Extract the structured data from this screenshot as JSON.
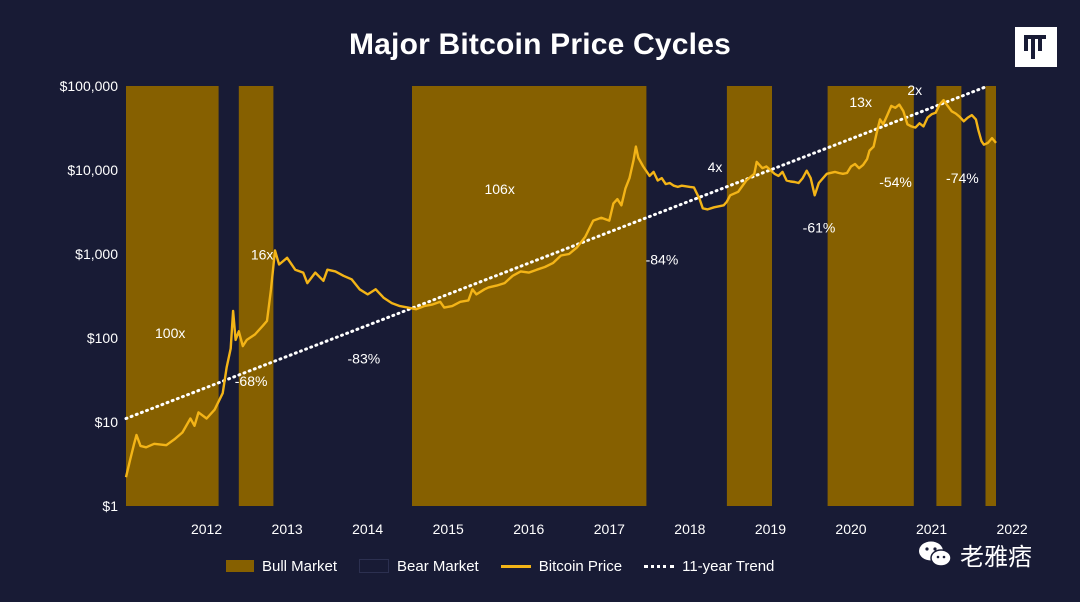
{
  "colors": {
    "background": "#181b35",
    "bull": "#866000",
    "price": "#f3b417",
    "trend": "#ffffff",
    "text": "#ffffff"
  },
  "logo_icon": "pantera-logo-icon",
  "watermark": {
    "icon": "wechat-icon",
    "text": "老雅痞"
  },
  "chart_data": {
    "type": "line",
    "title": "Major Bitcoin Price Cycles",
    "yscale": "log",
    "ylim": [
      1,
      100000
    ],
    "xlim": [
      2011.5,
      2022.3
    ],
    "y_ticks": [
      {
        "value": 100000,
        "label": "$100,000"
      },
      {
        "value": 10000,
        "label": "$10,000"
      },
      {
        "value": 1000,
        "label": "$1,000"
      },
      {
        "value": 100,
        "label": "$100"
      },
      {
        "value": 10,
        "label": "$10"
      },
      {
        "value": 1,
        "label": "$1"
      }
    ],
    "x_ticks": [
      {
        "value": 2012,
        "label": "2012"
      },
      {
        "value": 2013,
        "label": "2013"
      },
      {
        "value": 2014,
        "label": "2014"
      },
      {
        "value": 2015,
        "label": "2015"
      },
      {
        "value": 2016,
        "label": "2016"
      },
      {
        "value": 2017,
        "label": "2017"
      },
      {
        "value": 2018,
        "label": "2018"
      },
      {
        "value": 2019,
        "label": "2019"
      },
      {
        "value": 2020,
        "label": "2020"
      },
      {
        "value": 2021,
        "label": "2021"
      },
      {
        "value": 2022,
        "label": "2022"
      }
    ],
    "bull_periods": [
      [
        2011.5,
        2012.65
      ],
      [
        2012.9,
        2013.33
      ],
      [
        2015.05,
        2017.96
      ],
      [
        2018.96,
        2019.52
      ],
      [
        2020.21,
        2021.28
      ],
      [
        2021.56,
        2021.87
      ],
      [
        2022.17,
        2022.3
      ]
    ],
    "series": [
      {
        "name": "Bitcoin Price",
        "points": [
          [
            2011.5,
            2.2
          ],
          [
            2011.55,
            3.5
          ],
          [
            2011.6,
            5.5
          ],
          [
            2011.63,
            7.0
          ],
          [
            2011.68,
            5.2
          ],
          [
            2011.75,
            5.0
          ],
          [
            2011.85,
            5.5
          ],
          [
            2012.0,
            5.3
          ],
          [
            2012.1,
            6.2
          ],
          [
            2012.2,
            7.5
          ],
          [
            2012.3,
            11
          ],
          [
            2012.35,
            9
          ],
          [
            2012.4,
            13
          ],
          [
            2012.5,
            11
          ],
          [
            2012.6,
            14
          ],
          [
            2012.7,
            22
          ],
          [
            2012.75,
            45
          ],
          [
            2012.8,
            75
          ],
          [
            2012.83,
            210
          ],
          [
            2012.86,
            95
          ],
          [
            2012.9,
            120
          ],
          [
            2012.95,
            80
          ],
          [
            2013.0,
            95
          ],
          [
            2013.1,
            110
          ],
          [
            2013.2,
            140
          ],
          [
            2013.25,
            160
          ],
          [
            2013.3,
            380
          ],
          [
            2013.35,
            1100
          ],
          [
            2013.4,
            750
          ],
          [
            2013.5,
            900
          ],
          [
            2013.6,
            650
          ],
          [
            2013.7,
            600
          ],
          [
            2013.75,
            450
          ],
          [
            2013.85,
            600
          ],
          [
            2013.95,
            480
          ],
          [
            2014.0,
            650
          ],
          [
            2014.1,
            620
          ],
          [
            2014.2,
            550
          ],
          [
            2014.3,
            500
          ],
          [
            2014.4,
            380
          ],
          [
            2014.5,
            330
          ],
          [
            2014.6,
            380
          ],
          [
            2014.7,
            300
          ],
          [
            2014.8,
            260
          ],
          [
            2014.9,
            240
          ],
          [
            2015.0,
            230
          ],
          [
            2015.1,
            220
          ],
          [
            2015.2,
            240
          ],
          [
            2015.3,
            250
          ],
          [
            2015.4,
            270
          ],
          [
            2015.45,
            230
          ],
          [
            2015.55,
            240
          ],
          [
            2015.65,
            270
          ],
          [
            2015.75,
            280
          ],
          [
            2015.8,
            380
          ],
          [
            2015.85,
            330
          ],
          [
            2015.95,
            380
          ],
          [
            2016.0,
            400
          ],
          [
            2016.1,
            420
          ],
          [
            2016.2,
            450
          ],
          [
            2016.3,
            550
          ],
          [
            2016.4,
            620
          ],
          [
            2016.5,
            600
          ],
          [
            2016.6,
            650
          ],
          [
            2016.7,
            700
          ],
          [
            2016.8,
            780
          ],
          [
            2016.9,
            960
          ],
          [
            2017.0,
            1000
          ],
          [
            2017.1,
            1200
          ],
          [
            2017.2,
            1600
          ],
          [
            2017.3,
            2500
          ],
          [
            2017.4,
            2700
          ],
          [
            2017.5,
            2500
          ],
          [
            2017.55,
            4000
          ],
          [
            2017.6,
            4500
          ],
          [
            2017.65,
            3800
          ],
          [
            2017.7,
            6000
          ],
          [
            2017.75,
            8000
          ],
          [
            2017.8,
            13000
          ],
          [
            2017.83,
            19000
          ],
          [
            2017.86,
            14000
          ],
          [
            2017.92,
            11000
          ],
          [
            2017.95,
            10000
          ],
          [
            2018.0,
            8500
          ],
          [
            2018.05,
            9500
          ],
          [
            2018.1,
            7500
          ],
          [
            2018.15,
            8000
          ],
          [
            2018.2,
            6800
          ],
          [
            2018.25,
            7000
          ],
          [
            2018.3,
            6500
          ],
          [
            2018.35,
            6300
          ],
          [
            2018.4,
            6500
          ],
          [
            2018.45,
            6400
          ],
          [
            2018.5,
            6300
          ],
          [
            2018.55,
            6200
          ],
          [
            2018.62,
            4500
          ],
          [
            2018.66,
            3500
          ],
          [
            2018.72,
            3400
          ],
          [
            2018.8,
            3600
          ],
          [
            2018.86,
            3700
          ],
          [
            2018.92,
            3800
          ],
          [
            2018.96,
            4200
          ],
          [
            2019.0,
            5000
          ],
          [
            2019.1,
            5500
          ],
          [
            2019.2,
            7500
          ],
          [
            2019.3,
            9000
          ],
          [
            2019.33,
            12500
          ],
          [
            2019.4,
            10500
          ],
          [
            2019.45,
            11000
          ],
          [
            2019.5,
            10000
          ],
          [
            2019.55,
            9000
          ],
          [
            2019.6,
            8500
          ],
          [
            2019.65,
            9500
          ],
          [
            2019.7,
            7500
          ],
          [
            2019.75,
            7300
          ],
          [
            2019.8,
            7200
          ],
          [
            2019.85,
            7000
          ],
          [
            2019.9,
            8000
          ],
          [
            2019.95,
            9800
          ],
          [
            2020.0,
            8000
          ],
          [
            2020.05,
            5000
          ],
          [
            2020.1,
            7000
          ],
          [
            2020.2,
            9000
          ],
          [
            2020.3,
            9500
          ],
          [
            2020.35,
            9200
          ],
          [
            2020.4,
            9000
          ],
          [
            2020.45,
            9200
          ],
          [
            2020.5,
            11000
          ],
          [
            2020.55,
            11800
          ],
          [
            2020.6,
            10500
          ],
          [
            2020.65,
            11500
          ],
          [
            2020.7,
            13500
          ],
          [
            2020.73,
            17000
          ],
          [
            2020.78,
            19000
          ],
          [
            2020.82,
            28000
          ],
          [
            2020.86,
            40000
          ],
          [
            2020.9,
            35000
          ],
          [
            2020.95,
            45000
          ],
          [
            2021.0,
            58000
          ],
          [
            2021.05,
            55000
          ],
          [
            2021.1,
            60000
          ],
          [
            2021.15,
            50000
          ],
          [
            2021.2,
            35000
          ],
          [
            2021.25,
            33000
          ],
          [
            2021.3,
            32000
          ],
          [
            2021.35,
            36000
          ],
          [
            2021.4,
            33000
          ],
          [
            2021.45,
            42000
          ],
          [
            2021.5,
            46000
          ],
          [
            2021.55,
            48000
          ],
          [
            2021.6,
            60000
          ],
          [
            2021.65,
            68000
          ],
          [
            2021.7,
            58000
          ],
          [
            2021.75,
            50000
          ],
          [
            2021.8,
            47000
          ],
          [
            2021.85,
            43000
          ],
          [
            2021.9,
            38000
          ],
          [
            2021.95,
            42000
          ],
          [
            2022.0,
            45000
          ],
          [
            2022.05,
            40000
          ],
          [
            2022.08,
            30000
          ],
          [
            2022.12,
            22000
          ],
          [
            2022.15,
            20000
          ],
          [
            2022.2,
            21000
          ],
          [
            2022.25,
            24000
          ],
          [
            2022.3,
            21000
          ]
        ]
      },
      {
        "name": "11-year Trend",
        "points": [
          [
            2011.5,
            11
          ],
          [
            2022.2,
            100000
          ]
        ]
      }
    ],
    "annotations": [
      {
        "text": "100x",
        "x": 2011.86,
        "y": 100
      },
      {
        "text": "-68%",
        "x": 2012.85,
        "y": 27
      },
      {
        "text": "16x",
        "x": 2013.05,
        "y": 860
      },
      {
        "text": "-83%",
        "x": 2014.25,
        "y": 50
      },
      {
        "text": "106x",
        "x": 2015.95,
        "y": 5200
      },
      {
        "text": "-84%",
        "x": 2017.95,
        "y": 750
      },
      {
        "text": "4x",
        "x": 2018.72,
        "y": 9500
      },
      {
        "text": "-61%",
        "x": 2019.9,
        "y": 1800
      },
      {
        "text": "13x",
        "x": 2020.48,
        "y": 56000
      },
      {
        "text": "-54%",
        "x": 2020.85,
        "y": 6300
      },
      {
        "text": "2x",
        "x": 2021.2,
        "y": 78000
      },
      {
        "text": "-74%",
        "x": 2021.68,
        "y": 7000
      }
    ],
    "legend": [
      {
        "label": "Bull Market",
        "swatch": "bull"
      },
      {
        "label": "Bear Market",
        "swatch": "bear"
      },
      {
        "label": "Bitcoin Price",
        "swatch": "price"
      },
      {
        "label": "11-year Trend",
        "swatch": "trend"
      }
    ],
    "legend_position": "bottom"
  }
}
